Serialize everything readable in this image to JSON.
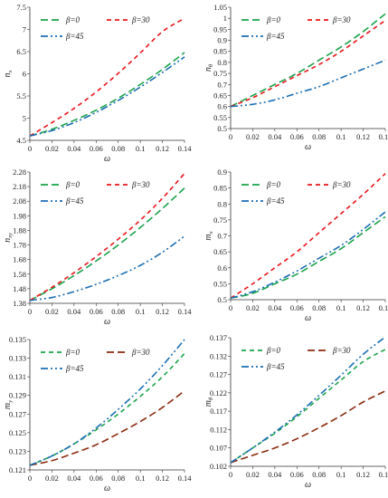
{
  "colors": {
    "beta0": "#1aa34a",
    "beta30": "#e8161b",
    "beta45": "#1b6fb3",
    "beta30_alt": "#8b2a0e"
  },
  "chart_data": [
    {
      "type": "line",
      "ylabel_main": "n",
      "ylabel_sub": "x",
      "xlabel": "ω",
      "xlim": [
        0,
        0.14
      ],
      "ylim": [
        4.5,
        7.5
      ],
      "xticks": [
        "0",
        "0.02",
        "0.04",
        "0.06",
        "0.08",
        "0.1",
        "0.12",
        "0.14"
      ],
      "yticks": [
        "4.5",
        "5",
        "5.5",
        "6",
        "6.5",
        "7",
        "7.5"
      ],
      "x": [
        0,
        0.02,
        0.04,
        0.06,
        0.08,
        0.1,
        0.12,
        0.14
      ],
      "series": [
        {
          "name": "β=0",
          "color_key": "beta0",
          "dash": "8,4",
          "values": [
            4.6,
            4.75,
            4.95,
            5.18,
            5.45,
            5.76,
            6.1,
            6.48
          ]
        },
        {
          "name": "β=30",
          "color_key": "beta30",
          "dash": "5,4",
          "values": [
            4.6,
            4.9,
            5.22,
            5.59,
            6.01,
            6.47,
            6.95,
            7.25
          ]
        },
        {
          "name": "β=45",
          "color_key": "beta45",
          "dash": "8,3,2,3,2,3",
          "values": [
            4.6,
            4.72,
            4.9,
            5.13,
            5.4,
            5.7,
            6.03,
            6.38
          ]
        }
      ],
      "legend": "top"
    },
    {
      "type": "line",
      "ylabel_main": "n",
      "ylabel_sub": "θ",
      "xlabel": "ω",
      "xlim": [
        0,
        0.14
      ],
      "ylim": [
        0.5,
        1.05
      ],
      "xticks": [
        "0",
        "0.02",
        "0.04",
        "0.06",
        "0.08",
        "0.1",
        "0.12",
        "0.14"
      ],
      "yticks": [
        "0.5",
        "0.55",
        "0.6",
        "0.65",
        "0.7",
        "0.75",
        "0.8",
        "0.85",
        "0.9",
        "0.95",
        "1",
        "1.05"
      ],
      "x": [
        0,
        0.02,
        0.04,
        0.06,
        0.08,
        0.1,
        0.12,
        0.14
      ],
      "series": [
        {
          "name": "β=0",
          "color_key": "beta0",
          "dash": "8,4",
          "values": [
            0.6,
            0.65,
            0.7,
            0.75,
            0.81,
            0.87,
            0.94,
            1.02
          ]
        },
        {
          "name": "β=30",
          "color_key": "beta30",
          "dash": "5,4",
          "values": [
            0.6,
            0.64,
            0.69,
            0.74,
            0.79,
            0.85,
            0.92,
            0.99
          ]
        },
        {
          "name": "β=45",
          "color_key": "beta45",
          "dash": "8,3,2,3,2,3",
          "values": [
            0.6,
            0.61,
            0.63,
            0.66,
            0.69,
            0.73,
            0.77,
            0.81
          ]
        }
      ],
      "legend": "top"
    },
    {
      "type": "line",
      "ylabel_main": "n",
      "ylabel_sub": "xy",
      "xlabel": "ω",
      "xlim": [
        0,
        0.14
      ],
      "ylim": [
        1.38,
        2.28
      ],
      "xticks": [
        "0",
        "0.02",
        "0.04",
        "0.06",
        "0.08",
        "0.1",
        "0.12",
        "0.14"
      ],
      "yticks": [
        "1.38",
        "1.48",
        "1.58",
        "1.68",
        "1.78",
        "1.88",
        "1.98",
        "2.08",
        "2.18",
        "2.28"
      ],
      "x": [
        0,
        0.02,
        0.04,
        0.06,
        0.08,
        0.1,
        0.12,
        0.14
      ],
      "series": [
        {
          "name": "β=0",
          "color_key": "beta0",
          "dash": "8,4",
          "values": [
            1.4,
            1.48,
            1.57,
            1.67,
            1.78,
            1.9,
            2.03,
            2.17
          ]
        },
        {
          "name": "β=30",
          "color_key": "beta30",
          "dash": "5,4",
          "values": [
            1.4,
            1.49,
            1.59,
            1.7,
            1.82,
            1.95,
            2.1,
            2.27
          ]
        },
        {
          "name": "β=45",
          "color_key": "beta45",
          "dash": "8,3,2,3,2,3",
          "values": [
            1.4,
            1.42,
            1.46,
            1.51,
            1.57,
            1.64,
            1.73,
            1.84
          ]
        }
      ],
      "legend": "top"
    },
    {
      "type": "line",
      "ylabel_main": "m",
      "ylabel_sub": "x",
      "xlabel": "ω",
      "xlim": [
        0,
        0.14
      ],
      "ylim": [
        0.5,
        0.9
      ],
      "xticks": [
        "0",
        "0.02",
        "0.04",
        "0.06",
        "0.08",
        "0.1",
        "0.12",
        "0.14"
      ],
      "yticks": [
        "0.5",
        "0.55",
        "0.6",
        "0.65",
        "0.7",
        "0.75",
        "0.8",
        "0.85",
        "0.9"
      ],
      "x": [
        0,
        0.02,
        0.04,
        0.06,
        0.08,
        0.1,
        0.12,
        0.14
      ],
      "series": [
        {
          "name": "β=0",
          "color_key": "beta0",
          "dash": "8,4",
          "values": [
            0.505,
            0.52,
            0.55,
            0.58,
            0.62,
            0.66,
            0.71,
            0.76
          ]
        },
        {
          "name": "β=30",
          "color_key": "beta30",
          "dash": "5,4",
          "values": [
            0.505,
            0.55,
            0.6,
            0.65,
            0.71,
            0.77,
            0.83,
            0.895
          ]
        },
        {
          "name": "β=45",
          "color_key": "beta45",
          "dash": "8,3,2,3,2,3",
          "values": [
            0.505,
            0.525,
            0.555,
            0.59,
            0.63,
            0.67,
            0.72,
            0.775
          ]
        }
      ],
      "legend": "top"
    },
    {
      "type": "line",
      "ylabel_main": "m",
      "ylabel_sub": "y",
      "xlabel": "ω",
      "xlim": [
        0,
        0.14
      ],
      "ylim": [
        0.121,
        0.135
      ],
      "xticks": [
        "0",
        "0.02",
        "0.04",
        "0.06",
        "0.08",
        "0.1",
        "0.12",
        "0.14"
      ],
      "yticks": [
        "0.121",
        "0.123",
        "0.125",
        "0.127",
        "0.129",
        "0.131",
        "0.133",
        "0.135"
      ],
      "x": [
        0,
        0.02,
        0.04,
        0.06,
        0.08,
        0.1,
        0.12,
        0.14
      ],
      "series": [
        {
          "name": "β=0",
          "color_key": "beta0",
          "dash": "5,4",
          "values": [
            0.1215,
            0.1225,
            0.1238,
            0.1253,
            0.127,
            0.1289,
            0.131,
            0.1335
          ]
        },
        {
          "name": "β=30",
          "color_key": "beta30_alt",
          "dash": "8,4",
          "values": [
            0.1215,
            0.122,
            0.1228,
            0.1237,
            0.1249,
            0.1262,
            0.1277,
            0.1295
          ]
        },
        {
          "name": "β=45",
          "color_key": "beta45",
          "dash": "8,3,2,3,2,3",
          "values": [
            0.1215,
            0.1225,
            0.1238,
            0.1255,
            0.1275,
            0.1297,
            0.1322,
            0.135
          ]
        }
      ],
      "legend": "top"
    },
    {
      "type": "line",
      "ylabel_main": "m",
      "ylabel_sub": "θ",
      "xlabel": "ω",
      "xlim": [
        0,
        0.14
      ],
      "ylim": [
        0.102,
        0.137
      ],
      "xticks": [
        "0",
        "0.02",
        "0.04",
        "0.06",
        "0.08",
        "0.1",
        "0.12",
        "0.14"
      ],
      "yticks": [
        "0.102",
        "0.107",
        "0.112",
        "0.117",
        "0.122",
        "0.127",
        "0.132",
        "0.137"
      ],
      "x": [
        0,
        0.02,
        0.04,
        0.06,
        0.08,
        0.1,
        0.12,
        0.14
      ],
      "series": [
        {
          "name": "β=0",
          "color_key": "beta0",
          "dash": "5,4",
          "values": [
            0.103,
            0.107,
            0.111,
            0.1155,
            0.1205,
            0.1255,
            0.1305,
            0.1338
          ]
        },
        {
          "name": "β=30",
          "color_key": "beta30_alt",
          "dash": "8,4",
          "values": [
            0.103,
            0.105,
            0.107,
            0.1095,
            0.1125,
            0.1158,
            0.1195,
            0.1225
          ]
        },
        {
          "name": "β=45",
          "color_key": "beta45",
          "dash": "8,3,2,3,2,3",
          "values": [
            0.103,
            0.107,
            0.1113,
            0.116,
            0.1213,
            0.1268,
            0.1325,
            0.1372
          ]
        }
      ],
      "legend": "top"
    }
  ]
}
